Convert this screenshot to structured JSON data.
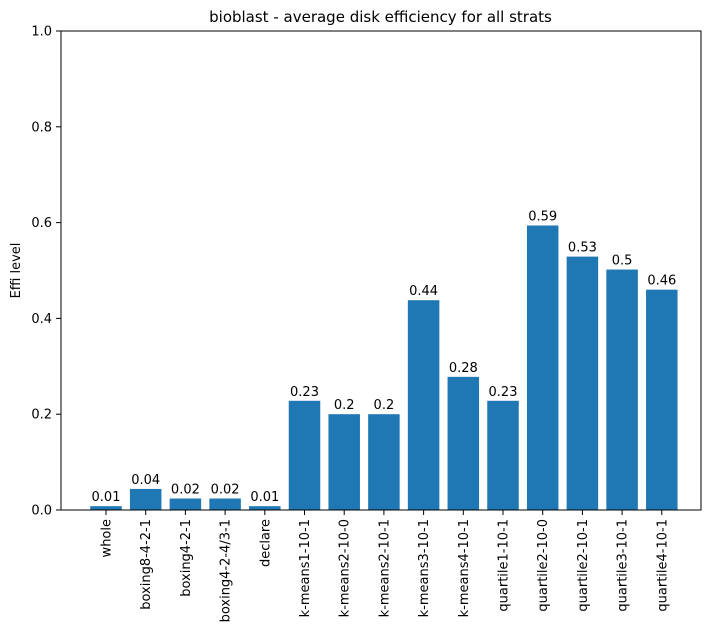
{
  "chart_data": {
    "type": "bar",
    "title": "bioblast - average disk efficiency for all strats",
    "xlabel": "",
    "ylabel": "Effi level",
    "ylim": [
      0,
      1.0
    ],
    "yticks": [
      "0.0",
      "0.2",
      "0.4",
      "0.6",
      "0.8",
      "1.0"
    ],
    "grid": false,
    "bar_color": "#1f77b4",
    "categories": [
      "whole",
      "boxing8-4-2-1",
      "boxing4-2-1",
      "boxing4-2-4/3-1",
      "declare",
      "k-means1-10-1",
      "k-means2-10-0",
      "k-means2-10-1",
      "k-means3-10-1",
      "k-means4-10-1",
      "quartile1-10-1",
      "quartile2-10-0",
      "quartile2-10-1",
      "quartile3-10-1",
      "quartile4-10-1"
    ],
    "values": [
      0.008,
      0.044,
      0.024,
      0.024,
      0.008,
      0.228,
      0.2,
      0.2,
      0.438,
      0.278,
      0.228,
      0.594,
      0.529,
      0.502,
      0.46
    ],
    "data_labels": [
      "0.01",
      "0.04",
      "0.02",
      "0.02",
      "0.01",
      "0.23",
      "0.2",
      "0.2",
      "0.44",
      "0.28",
      "0.23",
      "0.59",
      "0.53",
      "0.5",
      "0.46"
    ]
  }
}
